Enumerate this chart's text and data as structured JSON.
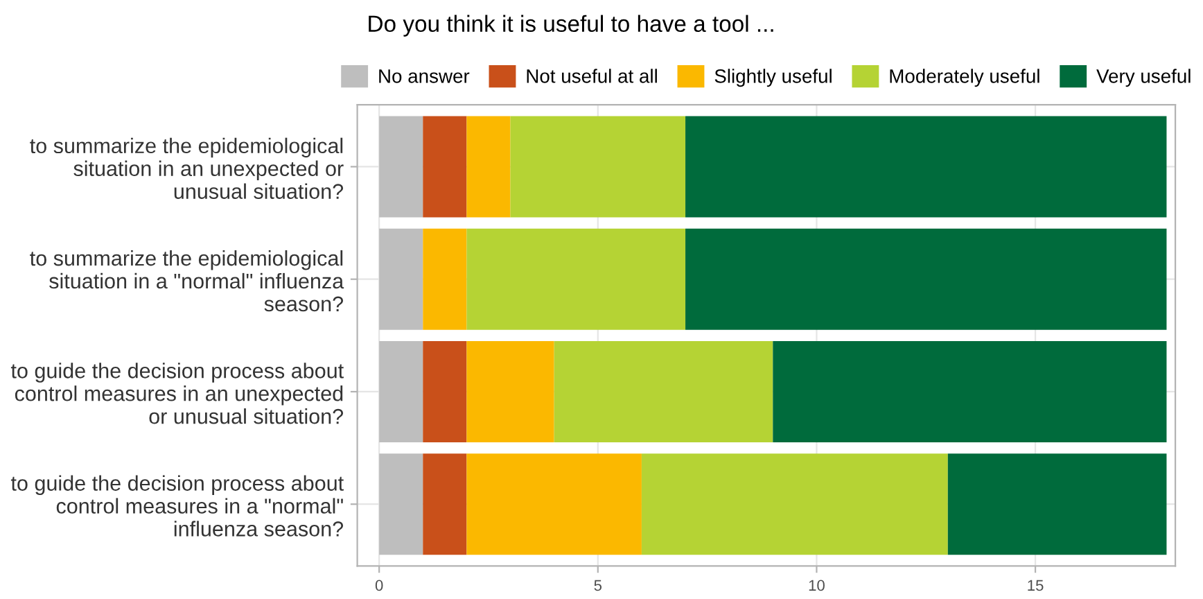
{
  "chart_data": {
    "type": "bar",
    "orientation": "horizontal",
    "stacked": true,
    "title": "Do you think it is useful to have a tool ...",
    "categories": [
      "to summarize the epidemiological\nsituation in an unexpected or\nunusual situation?",
      "to summarize the epidemiological\nsituation in a \"normal\" influenza\nseason?",
      "to guide the decision process about\ncontrol measures in an unexpected\nor unusual situation?",
      "to guide the decision process about\ncontrol measures in a \"normal\"\ninfluenza season?"
    ],
    "series": [
      {
        "name": "No answer",
        "color": "#bebebe",
        "values": [
          1,
          1,
          1,
          1
        ]
      },
      {
        "name": "Not useful at all",
        "color": "#c9501a",
        "values": [
          1,
          0,
          1,
          1
        ]
      },
      {
        "name": "Slightly useful",
        "color": "#fbb800",
        "values": [
          1,
          1,
          2,
          4
        ]
      },
      {
        "name": "Moderately useful",
        "color": "#b5d334",
        "values": [
          4,
          5,
          5,
          7
        ]
      },
      {
        "name": "Very useful",
        "color": "#006b3c",
        "values": [
          11,
          11,
          9,
          5
        ]
      }
    ],
    "xlim": [
      -0.5,
      18.2
    ],
    "xticks": [
      0,
      5,
      10,
      15
    ],
    "grid": true,
    "legend": "top"
  }
}
